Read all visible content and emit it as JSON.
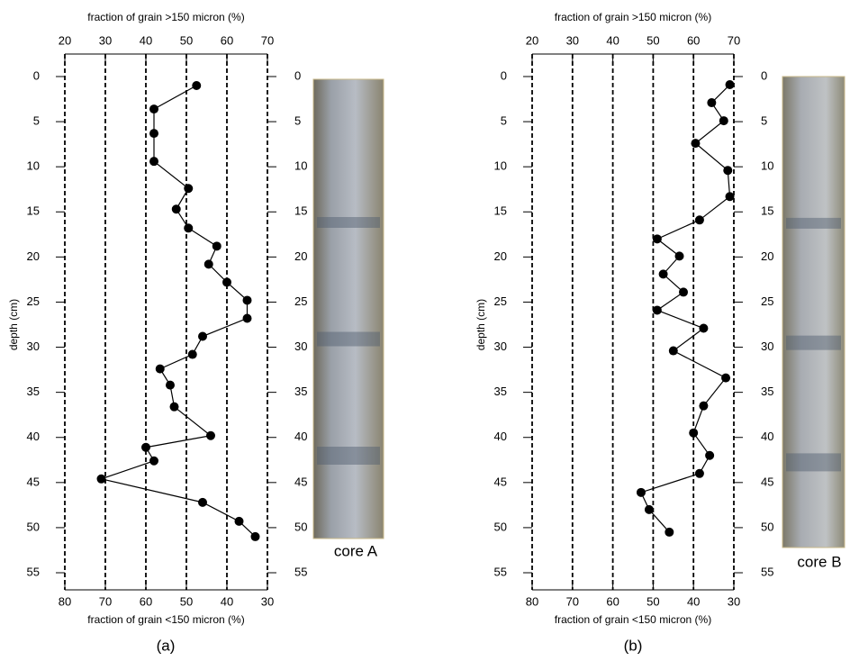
{
  "chart_data": [
    {
      "type": "line",
      "title_top": "fraction of grain >150 micron (%)",
      "title_bottom": "fraction of grain <150 micron (%)",
      "ylabel": "depth (cm)",
      "panel_label": "(a)",
      "photo_label": "core A",
      "xlim": [
        20,
        70
      ],
      "xticks": [
        20,
        30,
        40,
        50,
        60,
        70
      ],
      "x2lim": [
        80,
        30
      ],
      "x2ticks": [
        80,
        70,
        60,
        50,
        40,
        30
      ],
      "ylim": [
        0,
        55
      ],
      "yticks": [
        0,
        5,
        10,
        15,
        20,
        25,
        30,
        35,
        40,
        45,
        50,
        55
      ],
      "y_inverted": true,
      "grid": "dashed",
      "color": "#000000",
      "marker": "circle",
      "x": [
        52.5,
        42,
        42,
        42,
        50.5,
        47.5,
        50.5,
        57.5,
        55.5,
        60,
        65,
        65,
        54,
        51.5,
        43.5,
        46,
        47,
        56,
        40,
        42,
        29,
        54,
        63,
        67
      ],
      "values": [
        1.0,
        3.6,
        6.3,
        9.4,
        12.4,
        14.7,
        16.8,
        18.8,
        20.8,
        22.8,
        24.8,
        26.8,
        28.8,
        30.8,
        32.4,
        34.2,
        36.6,
        39.8,
        41.1,
        42.6,
        44.6,
        47.2,
        49.3,
        51.0
      ]
    },
    {
      "type": "line",
      "title_top": "fraction of grain >150 micron (%)",
      "title_bottom": "fraction of grain <150 micron (%)",
      "ylabel": "depth (cm)",
      "panel_label": "(b)",
      "photo_label": "core B",
      "xlim": [
        20,
        70
      ],
      "xticks": [
        20,
        30,
        40,
        50,
        60,
        70
      ],
      "x2lim": [
        80,
        30
      ],
      "x2ticks": [
        80,
        70,
        60,
        50,
        40,
        30
      ],
      "ylim": [
        0,
        55
      ],
      "yticks": [
        0,
        5,
        10,
        15,
        20,
        25,
        30,
        35,
        40,
        45,
        50,
        55
      ],
      "y_inverted": true,
      "grid": "dashed",
      "color": "#000000",
      "marker": "circle",
      "x": [
        69,
        64.5,
        67.5,
        60.5,
        68.5,
        69,
        61.5,
        51,
        56.5,
        52.5,
        57.5,
        51,
        62.5,
        55,
        68,
        62.5,
        60,
        64,
        61.5,
        47,
        49,
        54
      ],
      "values": [
        0.9,
        2.9,
        4.9,
        7.4,
        10.4,
        13.3,
        15.9,
        18.0,
        19.9,
        21.9,
        23.9,
        25.9,
        27.9,
        30.4,
        33.4,
        36.5,
        39.5,
        42.0,
        44.0,
        46.1,
        48.0,
        50.5
      ]
    }
  ]
}
